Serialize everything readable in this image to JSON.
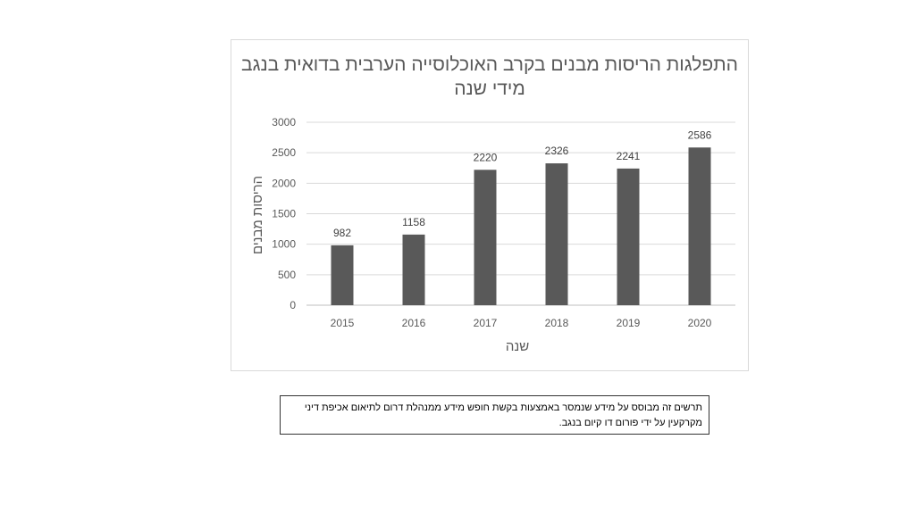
{
  "chart_data": {
    "type": "bar",
    "title": "התפלגות הריסות מבנים בקרב האוכלוסייה הערבית בדואית בנגב מידי שנה",
    "xlabel": "שנה",
    "ylabel": "הריסות מבנים",
    "categories": [
      "2015",
      "2016",
      "2017",
      "2018",
      "2019",
      "2020"
    ],
    "values": [
      982,
      1158,
      2220,
      2326,
      2241,
      2586
    ],
    "ylim": [
      0,
      3000
    ],
    "yticks": [
      0,
      500,
      1000,
      1500,
      2000,
      2500,
      3000
    ],
    "grid": true,
    "bar_color": "#595959"
  },
  "caption": {
    "text": "תרשים זה מבוסס על מידע שנמסר באמצעות בקשת חופש מידע ממנהלת דרום לתיאום אכיפת דיני מקרקעין על ידי פורום דו קיום בנגב."
  }
}
